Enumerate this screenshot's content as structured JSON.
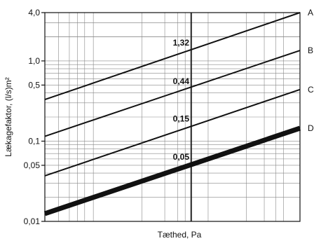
{
  "chart_data": {
    "type": "line",
    "xlabel": "Tæthed, Pa",
    "ylabel": "Lækagefaktor, (l/s)m²",
    "y_scale": "log",
    "ylim": [
      0.01,
      4.0
    ],
    "x_scale": "log",
    "x_major_divider": 50,
    "x_ticks": [],
    "y_ticks": [
      {
        "value": 4.0,
        "label": "4,0"
      },
      {
        "value": 1.0,
        "label": "1,0"
      },
      {
        "value": 0.5,
        "label": "0,5"
      },
      {
        "value": 0.1,
        "label": "0,1"
      },
      {
        "value": 0.05,
        "label": "0,05"
      },
      {
        "value": 0.01,
        "label": "0,01"
      }
    ],
    "series": [
      {
        "name": "A",
        "value_at_50": 1.32,
        "value_label": "1,32",
        "y_start": 0.33,
        "y_end": 4.0,
        "heavy": false
      },
      {
        "name": "B",
        "value_at_50": 0.44,
        "value_label": "0,44",
        "y_start": 0.115,
        "y_end": 1.35,
        "heavy": false
      },
      {
        "name": "C",
        "value_at_50": 0.15,
        "value_label": "0,15",
        "y_start": 0.037,
        "y_end": 0.44,
        "heavy": false
      },
      {
        "name": "D",
        "value_at_50": 0.05,
        "value_label": "0,05",
        "y_start": 0.0125,
        "y_end": 0.145,
        "heavy": true
      }
    ],
    "grid": true,
    "colors": {
      "line": "#111111",
      "grid": "#888888",
      "background": "#ffffff"
    }
  }
}
